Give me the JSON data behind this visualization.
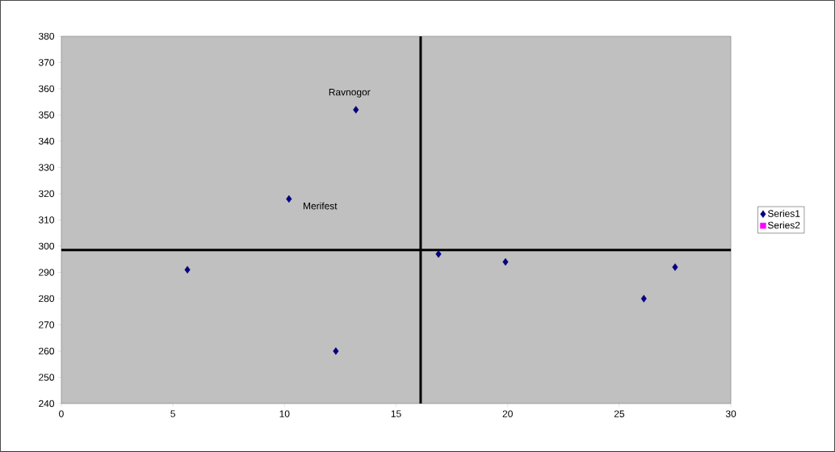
{
  "chart_data": {
    "type": "scatter",
    "marker": "diamond",
    "legend": "right",
    "grid": false,
    "xlim": [
      0,
      30
    ],
    "xticks": [
      0,
      5,
      10,
      15,
      20,
      25,
      30
    ],
    "ylim": [
      240,
      380
    ],
    "yticks": [
      240,
      250,
      260,
      270,
      280,
      290,
      300,
      310,
      320,
      330,
      340,
      350,
      360,
      370,
      380
    ],
    "series": [
      {
        "name": "Series1",
        "color": "#000080",
        "x": [
          5.65,
          10.2,
          12.3,
          13.2,
          16.9,
          19.9,
          26.1,
          27.5
        ],
        "values": [
          291,
          318,
          260,
          352,
          297,
          294,
          280,
          292
        ]
      },
      {
        "name": "Series2",
        "color": "#ff00ff"
      }
    ],
    "ref_lines": [
      {
        "axis": "x",
        "value": 16.1,
        "color": "#000000"
      },
      {
        "axis": "y",
        "value": 298.5,
        "color": "#000000"
      }
    ],
    "annotations": [
      {
        "text": "Ravnogor",
        "x": 13.2,
        "y": 352
      },
      {
        "text": "Merifest",
        "x": 10.2,
        "y": 318
      }
    ]
  }
}
